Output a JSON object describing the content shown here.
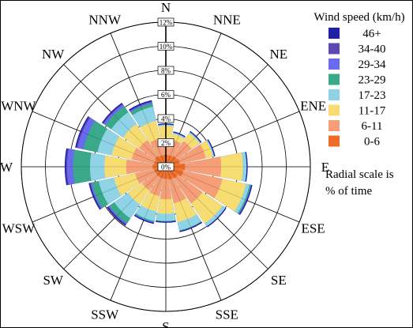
{
  "chart_data": {
    "type": "wind-rose",
    "direction_labels": [
      "N",
      "NNE",
      "NE",
      "ENE",
      "E",
      "ESE",
      "SE",
      "SSE",
      "S",
      "SSW",
      "SW",
      "WSW",
      "W",
      "WNW",
      "NW",
      "NNW"
    ],
    "radial_ticks": [
      "0%",
      "2%",
      "4%",
      "6%",
      "8%",
      "10%",
      "12%"
    ],
    "radial_max": 12,
    "legend": {
      "title": "Wind speed (km/h)",
      "note_lines": [
        "Radial scale is",
        "% of time"
      ],
      "bins": [
        {
          "label": "46+",
          "color": "#1f1fa8"
        },
        {
          "label": "34-40",
          "color": "#5c48b0"
        },
        {
          "label": "29-34",
          "color": "#6a6aee"
        },
        {
          "label": "23-29",
          "color": "#3aa98a"
        },
        {
          "label": "17-23",
          "color": "#8fd3e6"
        },
        {
          "label": "11-17",
          "color": "#f7dc72"
        },
        {
          "label": "6-11",
          "color": "#f59e78"
        },
        {
          "label": "0-6",
          "color": "#ef6c27"
        }
      ]
    },
    "series": [
      {
        "name": "0-6",
        "values": [
          1.0,
          1.0,
          1.1,
          1.2,
          1.6,
          1.5,
          1.2,
          1.1,
          1.0,
          1.0,
          1.0,
          1.0,
          1.1,
          1.0,
          1.1,
          1.0
        ]
      },
      {
        "name": "6-11",
        "values": [
          1.2,
          1.3,
          1.5,
          2.2,
          3.0,
          3.3,
          2.5,
          2.0,
          1.7,
          1.5,
          1.4,
          1.6,
          2.2,
          1.9,
          1.6,
          1.4
        ]
      },
      {
        "name": "11-17",
        "values": [
          1.2,
          0.5,
          0.8,
          0.6,
          1.8,
          2.0,
          2.0,
          1.6,
          1.2,
          1.3,
          1.4,
          1.8,
          1.8,
          1.7,
          1.6,
          1.5
        ]
      },
      {
        "name": "17-23",
        "values": [
          0.1,
          0.1,
          0.1,
          0.1,
          0.3,
          0.3,
          0.3,
          0.7,
          0.6,
          0.8,
          1.4,
          1.3,
          1.2,
          1.2,
          1.2,
          1.2
        ]
      },
      {
        "name": "23-29",
        "values": [
          0.0,
          0.0,
          0.0,
          0.0,
          0.0,
          0.1,
          0.0,
          0.05,
          0.05,
          0.1,
          0.5,
          0.6,
          1.4,
          1.2,
          0.6,
          0.3
        ]
      },
      {
        "name": "29-34",
        "values": [
          0.0,
          0.0,
          0.0,
          0.0,
          0.0,
          0.05,
          0.0,
          0.0,
          0.0,
          0.05,
          0.1,
          0.1,
          0.5,
          0.5,
          0.2,
          0.1
        ]
      },
      {
        "name": "34-40",
        "values": [
          0.0,
          0.0,
          0.0,
          0.0,
          0.0,
          0.0,
          0.0,
          0.0,
          0.0,
          0.0,
          0.05,
          0.05,
          0.1,
          0.1,
          0.05,
          0.05
        ]
      },
      {
        "name": "46+",
        "values": [
          0.1,
          0.1,
          0.1,
          0.1,
          0.1,
          0.1,
          0.1,
          0.1,
          0.1,
          0.1,
          0.1,
          0.1,
          0.1,
          0.1,
          0.1,
          0.1
        ]
      }
    ]
  }
}
